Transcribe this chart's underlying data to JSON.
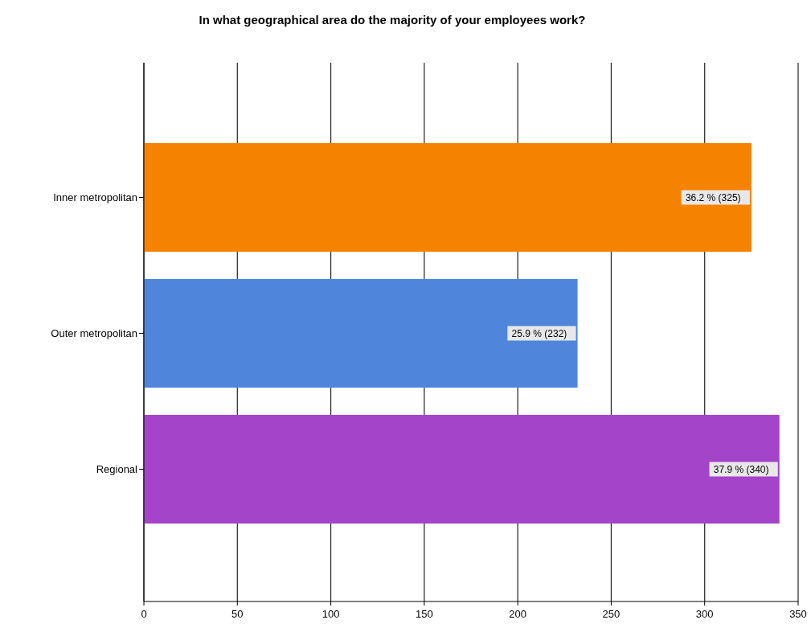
{
  "chart_data": {
    "type": "bar",
    "orientation": "horizontal",
    "title": "In what geographical area do the majority of your employees work?",
    "categories": [
      "Inner metropolitan",
      "Outer metropolitan",
      "Regional"
    ],
    "values": [
      325,
      232,
      340
    ],
    "colors": [
      "#f58200",
      "#4f86dc",
      "#a444c8"
    ],
    "value_labels": [
      "36.2 % (325)",
      "25.9 % (232)",
      "37.9 % (340)"
    ],
    "xlim": [
      0,
      350
    ],
    "xticks": [
      0,
      50,
      100,
      150,
      200,
      250,
      300,
      350
    ],
    "grid": "x"
  }
}
